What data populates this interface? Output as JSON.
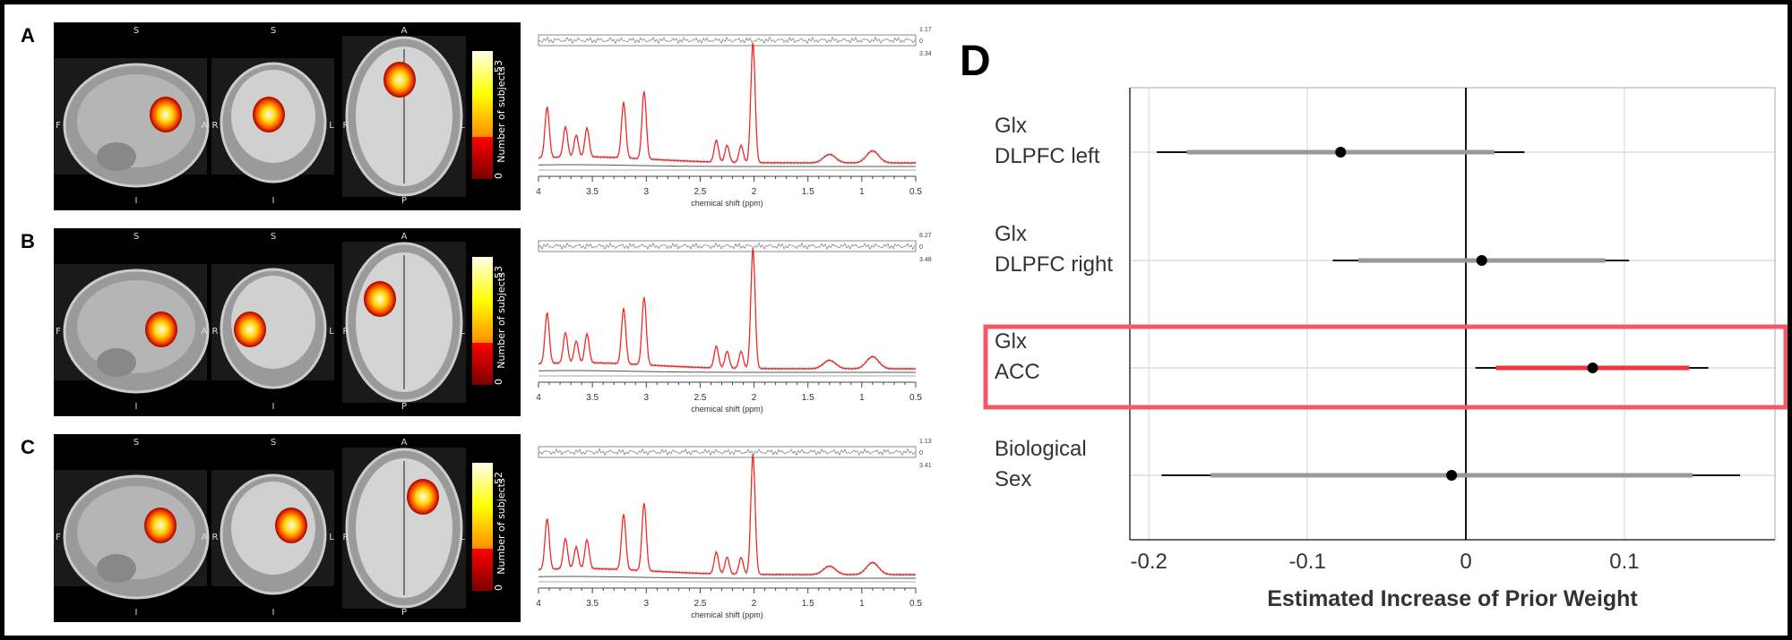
{
  "panels": [
    {
      "label": "A",
      "colorbar": {
        "max": "53",
        "min": "0",
        "title": "Number of subjects"
      },
      "orient": {
        "sag_top": "S",
        "sag_bottom": "I",
        "sag_left": "F",
        "sag_right": "A",
        "cor_top": "S",
        "cor_bottom": "I",
        "cor_left": "R",
        "cor_right": "L",
        "ax_top": "A",
        "ax_bottom": "P",
        "ax_left": "R",
        "ax_right": "L"
      },
      "residual_labels": [
        "1.17",
        "0",
        "3.34"
      ]
    },
    {
      "label": "B",
      "colorbar": {
        "max": "53",
        "min": "0",
        "title": "Number of subjects"
      },
      "orient": {
        "sag_top": "S",
        "sag_bottom": "I",
        "sag_left": "F",
        "sag_right": "A",
        "cor_top": "S",
        "cor_bottom": "I",
        "cor_left": "R",
        "cor_right": "L",
        "ax_top": "A",
        "ax_bottom": "P",
        "ax_left": "R",
        "ax_right": "L"
      },
      "residual_labels": [
        "8.27",
        "0",
        "3.48"
      ]
    },
    {
      "label": "C",
      "colorbar": {
        "max": "52",
        "min": "0",
        "title": "Number of subjects"
      },
      "orient": {
        "sag_top": "S",
        "sag_bottom": "I",
        "sag_left": "F",
        "sag_right": "A",
        "cor_top": "S",
        "cor_bottom": "I",
        "cor_left": "R",
        "cor_right": "L",
        "ax_top": "A",
        "ax_bottom": "P",
        "ax_left": "R",
        "ax_right": "L"
      },
      "residual_labels": [
        "1.13",
        "0",
        "3.41"
      ]
    }
  ],
  "colorbar_colors": [
    "#7a0000",
    "#ff0000",
    "#ff8c00",
    "#ffff00",
    "#ffffe8"
  ],
  "chart_data": [
    {
      "type": "line",
      "xlabel": "chemical shift (ppm)",
      "xlim": [
        4,
        0.5
      ],
      "xticks": [
        "4",
        "3.5",
        "3",
        "2.5",
        "2",
        "1.5",
        "1",
        "0.5"
      ],
      "peaks_ppm": [
        3.92,
        3.75,
        3.65,
        3.55,
        3.21,
        3.02,
        2.35,
        2.25,
        2.12,
        2.01,
        1.3,
        0.9
      ],
      "peaks_rel_height": [
        0.42,
        0.25,
        0.18,
        0.24,
        0.46,
        0.56,
        0.18,
        0.14,
        0.14,
        1.0,
        0.07,
        0.1
      ],
      "fit_color": "#ff2020",
      "data_color": "#888888"
    },
    {
      "type": "forest",
      "title": "D",
      "xlabel": "Estimated Increase of Prior Weight",
      "xlim": [
        -0.212,
        0.195
      ],
      "xticks": [
        -0.2,
        -0.1,
        0,
        0.1
      ],
      "xtick_labels": [
        "-0.2",
        "-0.1",
        "0",
        "0.1"
      ],
      "grid": true,
      "rows": [
        {
          "label_line1": "Glx",
          "label_line2": "DLPFC left",
          "estimate": -0.079,
          "inner": [
            -0.176,
            0.018
          ],
          "outer": [
            -0.195,
            0.037
          ],
          "color": "#999999"
        },
        {
          "label_line1": "Glx",
          "label_line2": "DLPFC right",
          "estimate": 0.01,
          "inner": [
            -0.068,
            0.088
          ],
          "outer": [
            -0.084,
            0.103
          ],
          "color": "#999999"
        },
        {
          "label_line1": "Glx",
          "label_line2": "ACC",
          "estimate": 0.08,
          "inner": [
            0.019,
            0.141
          ],
          "outer": [
            0.006,
            0.153
          ],
          "color": "#f5333f",
          "highlighted": true
        },
        {
          "label_line1": "Biological",
          "label_line2": "Sex",
          "estimate": -0.009,
          "inner": [
            -0.161,
            0.143
          ],
          "outer": [
            -0.192,
            0.173
          ],
          "color": "#999999"
        }
      ],
      "highlight_color": "#f25a6a"
    }
  ]
}
